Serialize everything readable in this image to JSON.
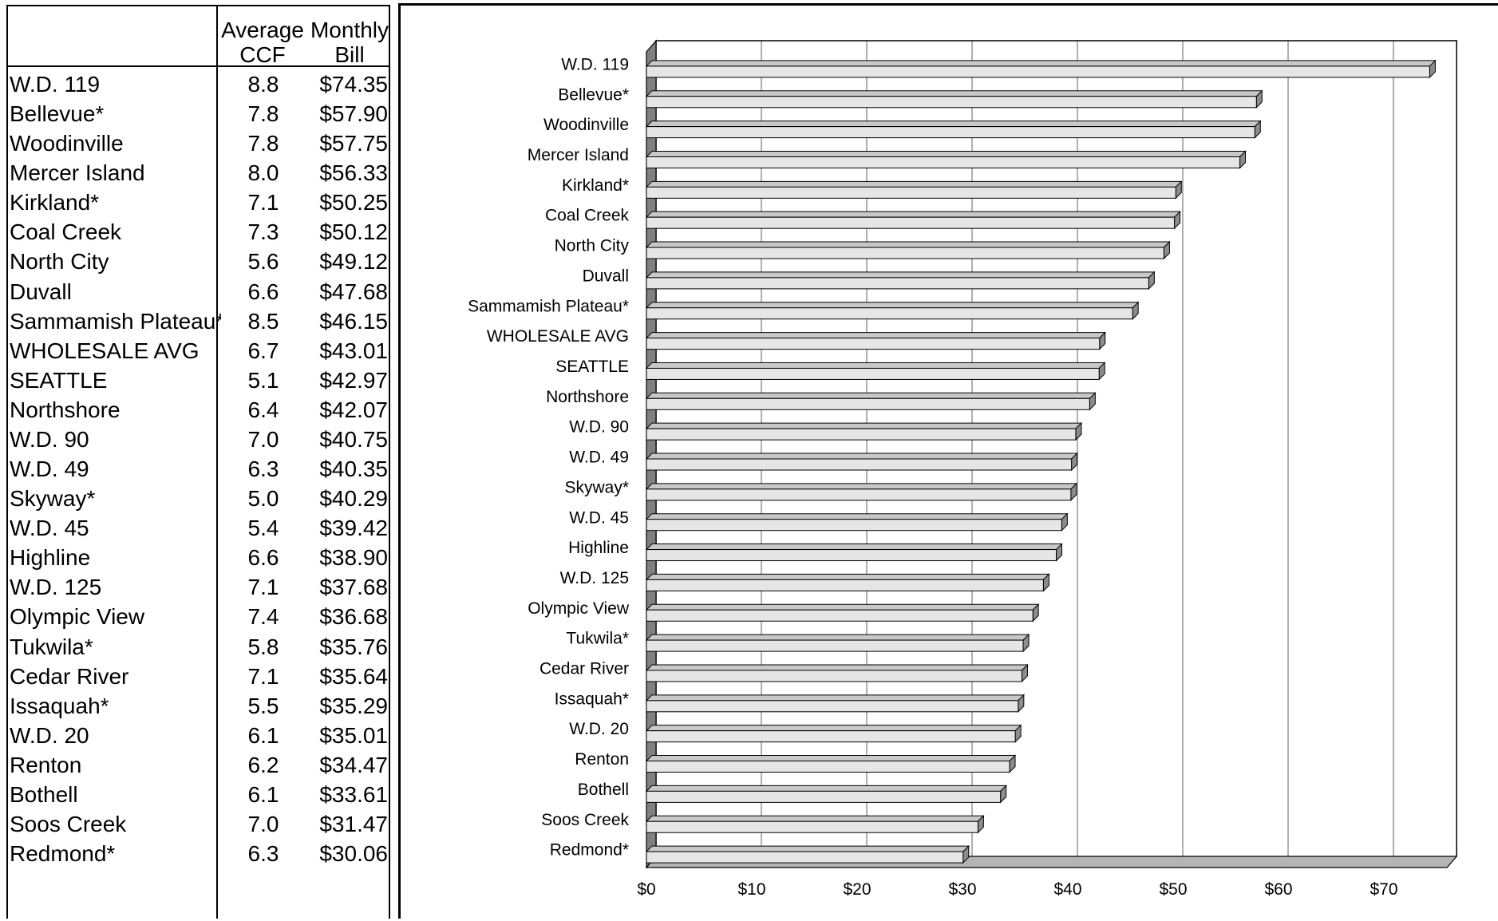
{
  "table": {
    "headers": {
      "ccf_line1": "Average",
      "ccf_line2": "CCF",
      "bill_line1": "Monthly",
      "bill_line2": "Bill"
    },
    "rows": [
      {
        "name": "W.D. 119",
        "ccf": "8.8",
        "bill": "$74.35"
      },
      {
        "name": "Bellevue*",
        "ccf": "7.8",
        "bill": "$57.90"
      },
      {
        "name": "Woodinville",
        "ccf": "7.8",
        "bill": "$57.75"
      },
      {
        "name": "Mercer Island",
        "ccf": "8.0",
        "bill": "$56.33"
      },
      {
        "name": "Kirkland*",
        "ccf": "7.1",
        "bill": "$50.25"
      },
      {
        "name": "Coal Creek",
        "ccf": "7.3",
        "bill": "$50.12"
      },
      {
        "name": "North City",
        "ccf": "5.6",
        "bill": "$49.12"
      },
      {
        "name": "Duvall",
        "ccf": "6.6",
        "bill": "$47.68"
      },
      {
        "name": "Sammamish Plateau*",
        "ccf": "8.5",
        "bill": "$46.15"
      },
      {
        "name": "WHOLESALE AVG",
        "ccf": "6.7",
        "bill": "$43.01"
      },
      {
        "name": "SEATTLE",
        "ccf": "5.1",
        "bill": "$42.97"
      },
      {
        "name": "Northshore",
        "ccf": "6.4",
        "bill": "$42.07"
      },
      {
        "name": "W.D. 90",
        "ccf": "7.0",
        "bill": "$40.75"
      },
      {
        "name": "W.D. 49",
        "ccf": "6.3",
        "bill": "$40.35"
      },
      {
        "name": "Skyway*",
        "ccf": "5.0",
        "bill": "$40.29"
      },
      {
        "name": "W.D. 45",
        "ccf": "5.4",
        "bill": "$39.42"
      },
      {
        "name": "Highline",
        "ccf": "6.6",
        "bill": "$38.90"
      },
      {
        "name": "W.D. 125",
        "ccf": "7.1",
        "bill": "$37.68"
      },
      {
        "name": "Olympic View",
        "ccf": "7.4",
        "bill": "$36.68"
      },
      {
        "name": "Tukwila*",
        "ccf": "5.8",
        "bill": "$35.76"
      },
      {
        "name": "Cedar River",
        "ccf": "7.1",
        "bill": "$35.64"
      },
      {
        "name": "Issaquah*",
        "ccf": "5.5",
        "bill": "$35.29"
      },
      {
        "name": "W.D. 20",
        "ccf": "6.1",
        "bill": "$35.01"
      },
      {
        "name": "Renton",
        "ccf": "6.2",
        "bill": "$34.47"
      },
      {
        "name": "Bothell",
        "ccf": "6.1",
        "bill": "$33.61"
      },
      {
        "name": "Soos Creek",
        "ccf": "7.0",
        "bill": "$31.47"
      },
      {
        "name": "Redmond*",
        "ccf": "6.3",
        "bill": "$30.06"
      }
    ]
  },
  "chart_data": {
    "type": "bar",
    "orientation": "horizontal",
    "style": "3d",
    "categories": [
      "W.D. 119",
      "Bellevue*",
      "Woodinville",
      "Mercer Island",
      "Kirkland*",
      "Coal Creek",
      "North City",
      "Duvall",
      "Sammamish Plateau*",
      "WHOLESALE AVG",
      "SEATTLE",
      "Northshore",
      "W.D. 90",
      "W.D. 49",
      "Skyway*",
      "W.D. 45",
      "Highline",
      "W.D. 125",
      "Olympic View",
      "Tukwila*",
      "Cedar River",
      "Issaquah*",
      "W.D. 20",
      "Renton",
      "Bothell",
      "Soos Creek",
      "Redmond*"
    ],
    "values": [
      74.35,
      57.9,
      57.75,
      56.33,
      50.25,
      50.12,
      49.12,
      47.68,
      46.15,
      43.01,
      42.97,
      42.07,
      40.75,
      40.35,
      40.29,
      39.42,
      38.9,
      37.68,
      36.68,
      35.76,
      35.64,
      35.29,
      35.01,
      34.47,
      33.61,
      31.47,
      30.06
    ],
    "xticks": [
      "$0",
      "$10",
      "$20",
      "$30",
      "$40",
      "$50",
      "$60",
      "$70"
    ],
    "xlim": [
      0,
      76
    ],
    "grid": true,
    "colors": {
      "bar_face": "#e6e6e6",
      "bar_top": "#c8c8c8",
      "bar_side": "#8c8c8c",
      "wall_side": "#808080",
      "floor": "#b4b4b4",
      "grid": "#b0b0b0"
    }
  }
}
